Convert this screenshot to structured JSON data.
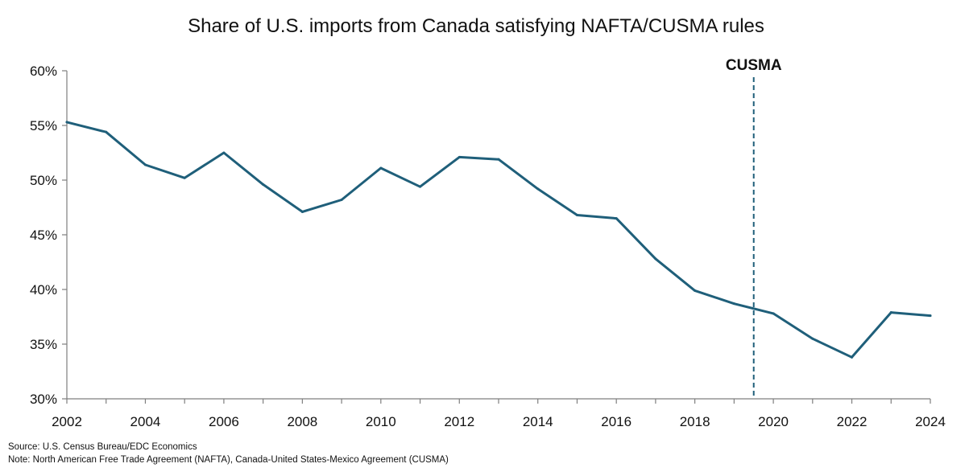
{
  "chart_data": {
    "type": "line",
    "title": "Share of U.S. imports from Canada satisfying NAFTA/CUSMA rules",
    "xlabel": "",
    "ylabel": "",
    "x": [
      2002,
      2003,
      2004,
      2005,
      2006,
      2007,
      2008,
      2009,
      2010,
      2011,
      2012,
      2013,
      2014,
      2015,
      2016,
      2017,
      2018,
      2019,
      2020,
      2021,
      2022,
      2023,
      2024
    ],
    "series": [
      {
        "name": "Share of U.S. imports from Canada satisfying NAFTA/CUSMA rules",
        "color": "#1f5f7a",
        "values": [
          55.3,
          54.4,
          51.4,
          50.2,
          52.5,
          49.6,
          47.1,
          48.2,
          51.1,
          49.4,
          52.1,
          51.9,
          49.2,
          46.8,
          46.5,
          42.8,
          39.9,
          38.7,
          37.8,
          35.5,
          33.8,
          37.9,
          37.6
        ]
      }
    ],
    "xlim": [
      2002,
      2024
    ],
    "ylim": [
      30,
      60
    ],
    "x_ticks": [
      2002,
      2004,
      2006,
      2008,
      2010,
      2012,
      2014,
      2016,
      2018,
      2020,
      2022,
      2024
    ],
    "x_tick_labels": [
      "2002",
      "2004",
      "2006",
      "2008",
      "2010",
      "2012",
      "2014",
      "2016",
      "2018",
      "2020",
      "2022",
      "2024"
    ],
    "y_ticks": [
      30,
      35,
      40,
      45,
      50,
      55,
      60
    ],
    "y_tick_labels": [
      "30%",
      "35%",
      "40%",
      "45%",
      "50%",
      "55%",
      "60%"
    ],
    "grid": false,
    "legend": "none",
    "annotations": [
      {
        "type": "vline",
        "x": 2019.5,
        "label": "CUSMA",
        "style": "dashed",
        "color": "#1f5f7a"
      }
    ]
  },
  "notes": {
    "source": "Source: U.S. Census Bureau/EDC Economics",
    "note": "Note: North American Free Trade Agreement (NAFTA), Canada-United States-Mexico Agreement (CUSMA)"
  },
  "colors": {
    "axis": "#7f7f7f",
    "text": "#111111",
    "background": "#ffffff"
  }
}
